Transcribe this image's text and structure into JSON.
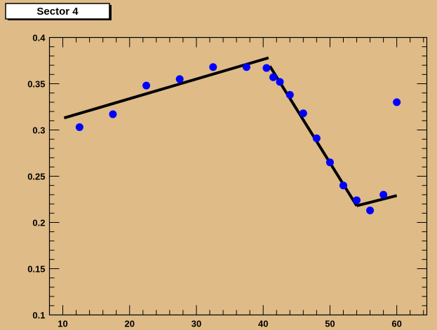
{
  "chart_data": {
    "type": "scatter",
    "title": "Sector 4",
    "xlabel": "",
    "ylabel": "",
    "xlim": [
      8,
      64.5
    ],
    "ylim": [
      0.1,
      0.4
    ],
    "x_ticks": [
      10,
      20,
      30,
      40,
      50,
      60
    ],
    "y_ticks": [
      0.1,
      0.15,
      0.2,
      0.25,
      0.3,
      0.35,
      0.4
    ],
    "y_tick_labels": [
      "0.1",
      "0.15",
      "0.2",
      "0.25",
      "0.3",
      "0.35",
      "0.4"
    ],
    "grid": false,
    "series": [
      {
        "marker": "circle",
        "color": "#0000ff",
        "points": [
          [
            12.5,
            0.303
          ],
          [
            17.5,
            0.317
          ],
          [
            22.5,
            0.348
          ],
          [
            27.5,
            0.355
          ],
          [
            32.5,
            0.368
          ],
          [
            37.5,
            0.368
          ],
          [
            40.5,
            0.367
          ],
          [
            41.5,
            0.357
          ],
          [
            42.5,
            0.352
          ],
          [
            44.0,
            0.338
          ],
          [
            46.0,
            0.318
          ],
          [
            48.0,
            0.291
          ],
          [
            50.0,
            0.265
          ],
          [
            52.0,
            0.24
          ],
          [
            54.0,
            0.224
          ],
          [
            56.0,
            0.213
          ],
          [
            58.0,
            0.23
          ],
          [
            60.0,
            0.33
          ]
        ]
      }
    ],
    "fit_lines": [
      {
        "color": "#000000",
        "points": [
          [
            10.2,
            0.313
          ],
          [
            40.8,
            0.378
          ]
        ]
      },
      {
        "color": "#000000",
        "points": [
          [
            41.0,
            0.369
          ],
          [
            54.0,
            0.218
          ]
        ]
      },
      {
        "color": "#000000",
        "points": [
          [
            54.0,
            0.218
          ],
          [
            60.0,
            0.229
          ]
        ]
      }
    ]
  }
}
